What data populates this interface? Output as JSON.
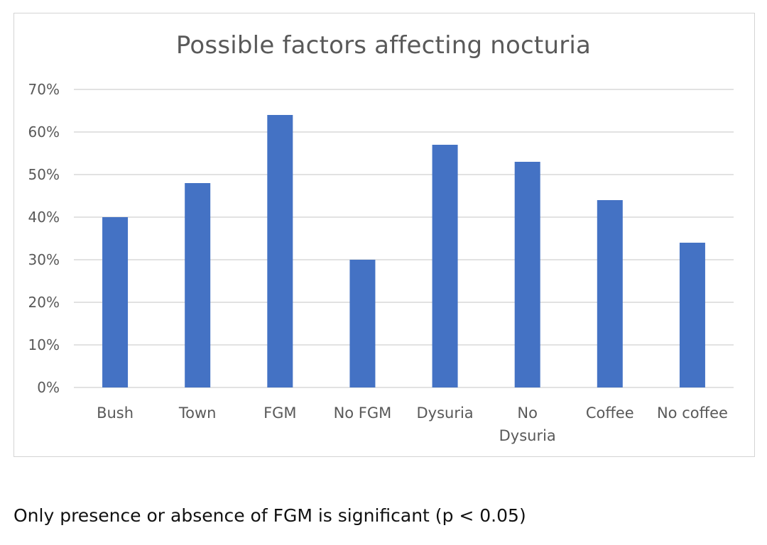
{
  "chart_data": {
    "type": "bar",
    "title": "Possible factors affecting nocturia",
    "categories": [
      "Bush",
      "Town",
      "FGM",
      "No FGM",
      "Dysuria",
      "No Dysuria",
      "Coffee",
      "No coffee"
    ],
    "category_lines": [
      [
        "Bush"
      ],
      [
        "Town"
      ],
      [
        "FGM"
      ],
      [
        "No FGM"
      ],
      [
        "Dysuria"
      ],
      [
        "No",
        "Dysuria"
      ],
      [
        "Coffee"
      ],
      [
        "No coffee"
      ]
    ],
    "values": [
      40,
      48,
      64,
      30,
      57,
      53,
      44,
      34
    ],
    "ylim": [
      0,
      70
    ],
    "yticks": [
      0,
      10,
      20,
      30,
      40,
      50,
      60,
      70
    ],
    "ytick_labels": [
      "0%",
      "10%",
      "20%",
      "30%",
      "40%",
      "50%",
      "60%",
      "70%"
    ],
    "xlabel": "",
    "ylabel": "",
    "grid": true,
    "legend": "none",
    "bar_color": "#4472C4",
    "grid_color": "#d9d9d9"
  },
  "footnote": "Only presence or absence of FGM is significant (p < 0.05)"
}
